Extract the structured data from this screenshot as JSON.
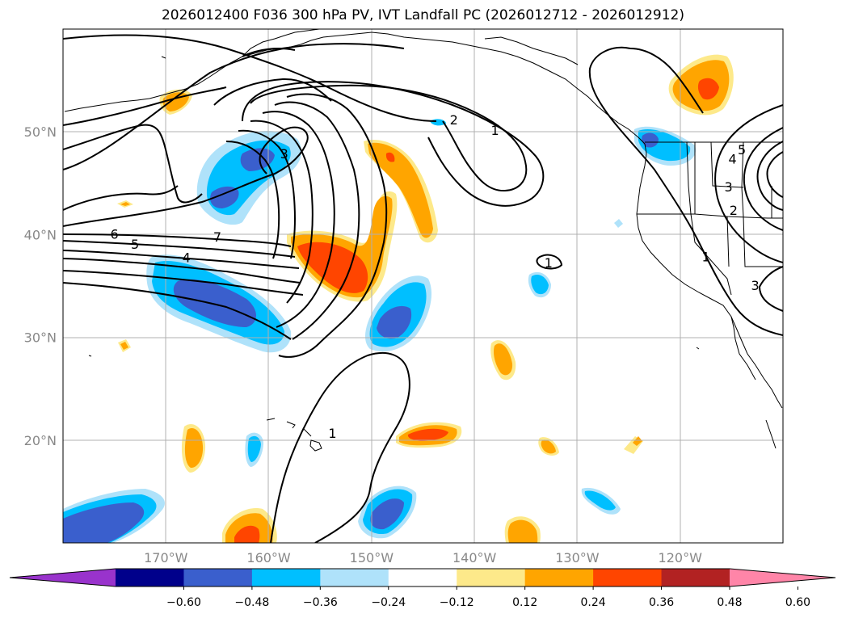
{
  "title": "2026012400 F036 300 hPa PV, IVT Landfall PC (2026012712 - 2026012912)",
  "map": {
    "lon_range": [
      -180,
      -110
    ],
    "lat_range": [
      10,
      60
    ],
    "lat_ticks": [
      {
        "value": 20,
        "label": "20°N"
      },
      {
        "value": 30,
        "label": "30°N"
      },
      {
        "value": 40,
        "label": "40°N"
      },
      {
        "value": 50,
        "label": "50°N"
      }
    ],
    "lon_ticks": [
      {
        "value": -170,
        "label": "170°W"
      },
      {
        "value": -160,
        "label": "160°W"
      },
      {
        "value": -150,
        "label": "150°W"
      },
      {
        "value": -140,
        "label": "140°W"
      },
      {
        "value": -130,
        "label": "130°W"
      },
      {
        "value": -120,
        "label": "120°W"
      }
    ],
    "contour_labels": [
      {
        "text": "6",
        "lon": -175,
        "lat": 40
      },
      {
        "text": "5",
        "lon": -173,
        "lat": 39
      },
      {
        "text": "7",
        "lon": -165,
        "lat": 39.7
      },
      {
        "text": "4",
        "lon": -168,
        "lat": 37.7
      },
      {
        "text": "3",
        "lon": -158.5,
        "lat": 47.8
      },
      {
        "text": "2",
        "lon": -142,
        "lat": 51.1
      },
      {
        "text": "1",
        "lon": -138,
        "lat": 50.1
      },
      {
        "text": "1",
        "lon": -132.8,
        "lat": 37.2
      },
      {
        "text": "1",
        "lon": -153.8,
        "lat": 20.6
      },
      {
        "text": "1",
        "lon": -117.5,
        "lat": 37.8
      },
      {
        "text": "2",
        "lon": -114.8,
        "lat": 42.3
      },
      {
        "text": "3",
        "lon": -115.3,
        "lat": 44.6
      },
      {
        "text": "4",
        "lon": -114.9,
        "lat": 47.3
      },
      {
        "text": "5",
        "lon": -114,
        "lat": 48.2
      },
      {
        "text": "3",
        "lon": -112.7,
        "lat": 35
      }
    ]
  },
  "colorbar": {
    "levels": [
      "−0.60",
      "−0.48",
      "−0.36",
      "−0.24",
      "−0.12",
      "0.12",
      "0.24",
      "0.36",
      "0.48",
      "0.60"
    ],
    "colors": [
      "#9933cc",
      "#00008b",
      "#3a5fcd",
      "#00bfff",
      "#afe2fa",
      "#ffffff",
      "#fde98a",
      "#ffa500",
      "#ff4500",
      "#b22222",
      "#ff85a8"
    ]
  }
}
